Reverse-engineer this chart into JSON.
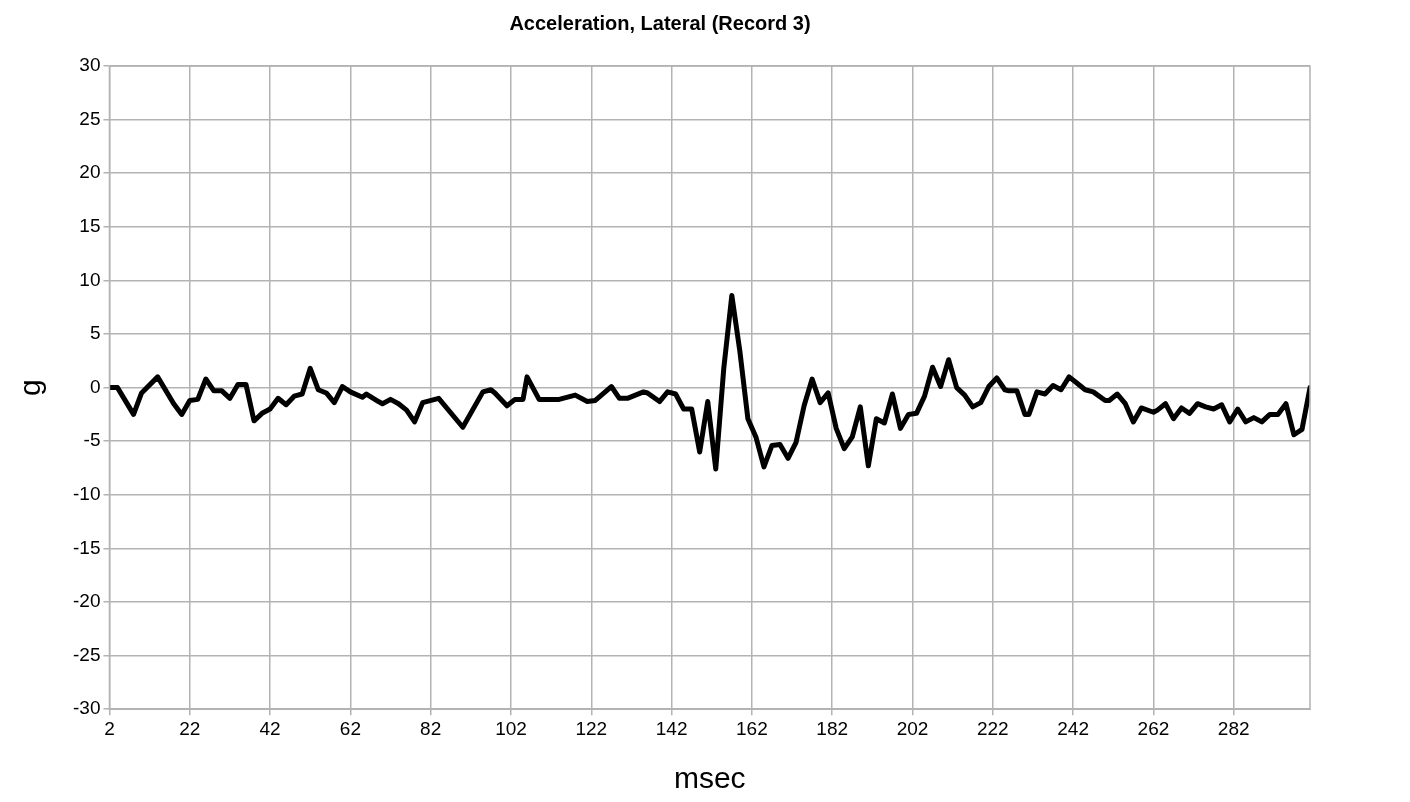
{
  "chart_data": {
    "type": "line",
    "title": "Acceleration, Lateral (Record 3)",
    "xlabel": "msec",
    "ylabel": "g",
    "x": [
      2,
      4,
      8,
      10,
      14,
      18,
      20,
      22,
      24,
      26,
      28,
      30,
      32,
      34,
      36,
      38,
      40,
      42,
      44,
      46,
      48,
      50,
      52,
      54,
      56,
      58,
      60,
      62,
      65,
      66,
      69,
      70,
      72,
      74,
      76,
      78,
      80,
      84,
      90,
      95,
      97,
      98,
      101,
      103,
      105,
      106,
      109,
      114,
      118,
      121,
      123,
      127,
      129,
      131,
      135,
      136,
      139,
      141,
      143,
      145,
      147,
      149,
      151,
      153,
      155,
      157,
      159,
      161,
      163,
      165,
      167,
      169,
      171,
      173,
      175,
      177,
      179,
      181,
      183,
      185,
      187,
      189,
      191,
      193,
      195,
      197,
      199,
      201,
      203,
      205,
      207,
      209,
      211,
      213,
      215,
      217,
      219,
      221,
      223,
      225,
      226,
      228,
      230,
      231,
      233,
      235,
      237,
      239,
      241,
      243,
      245,
      247,
      250,
      251,
      253,
      255,
      257,
      259,
      262,
      263,
      265,
      267,
      269,
      271,
      273,
      275,
      277,
      279,
      281,
      283,
      285,
      287,
      289,
      291,
      293,
      295,
      297,
      299,
      301
    ],
    "series": [
      {
        "color": "#000000",
        "values": [
          0,
          0,
          -2.5,
          -0.5,
          1.0,
          -1.5,
          -2.5,
          -1.2,
          -1.1,
          0.8,
          -0.3,
          -0.3,
          -1.0,
          0.3,
          0.3,
          -3.1,
          -2.4,
          -2.0,
          -1.0,
          -1.6,
          -0.8,
          -0.6,
          1.8,
          -0.2,
          -0.5,
          -1.4,
          0.1,
          -0.4,
          -0.9,
          -0.6,
          -1.3,
          -1.5,
          -1.1,
          -1.5,
          -2.1,
          -3.2,
          -1.4,
          -1.0,
          -3.7,
          -0.4,
          -0.2,
          -0.5,
          -1.7,
          -1.1,
          -1.1,
          1.0,
          -1.1,
          -1.1,
          -0.7,
          -1.3,
          -1.2,
          0.1,
          -1.0,
          -1.0,
          -0.4,
          -0.5,
          -1.3,
          -0.4,
          -0.6,
          -2.0,
          -2.0,
          -6.0,
          -1.3,
          -7.6,
          1.8,
          8.6,
          3.4,
          -2.9,
          -4.6,
          -7.4,
          -5.4,
          -5.3,
          -6.6,
          -5.1,
          -1.7,
          0.8,
          -1.4,
          -0.5,
          -3.8,
          -5.7,
          -4.6,
          -1.8,
          -7.3,
          -2.9,
          -3.3,
          -0.6,
          -3.8,
          -2.5,
          -2.4,
          -0.8,
          1.9,
          0.1,
          2.6,
          0,
          -0.7,
          -1.8,
          -1.4,
          0.1,
          0.9,
          -0.2,
          -0.3,
          -0.3,
          -2.5,
          -2.5,
          -0.4,
          -0.6,
          0.2,
          -0.2,
          1.0,
          0.4,
          -0.2,
          -0.4,
          -1.2,
          -1.2,
          -0.6,
          -1.5,
          -3.2,
          -1.9,
          -2.3,
          -2.1,
          -1.5,
          -2.9,
          -1.9,
          -2.4,
          -1.5,
          -1.8,
          -2.0,
          -1.6,
          -3.2,
          -2.0,
          -3.2,
          -2.8,
          -3.2,
          -2.5,
          -2.5,
          -1.5,
          -4.4,
          -3.9,
          0
        ]
      }
    ],
    "xlim": [
      2,
      301
    ],
    "xticks": [
      2,
      22,
      42,
      62,
      82,
      102,
      122,
      142,
      162,
      182,
      202,
      222,
      242,
      262,
      282
    ],
    "ylim": [
      -30,
      30
    ],
    "yticks": [
      -30,
      -25,
      -20,
      -15,
      -10,
      -5,
      0,
      5,
      10,
      15,
      20,
      25,
      30
    ],
    "grid": true,
    "legend": false,
    "marker": "none",
    "line_style": "solid"
  }
}
